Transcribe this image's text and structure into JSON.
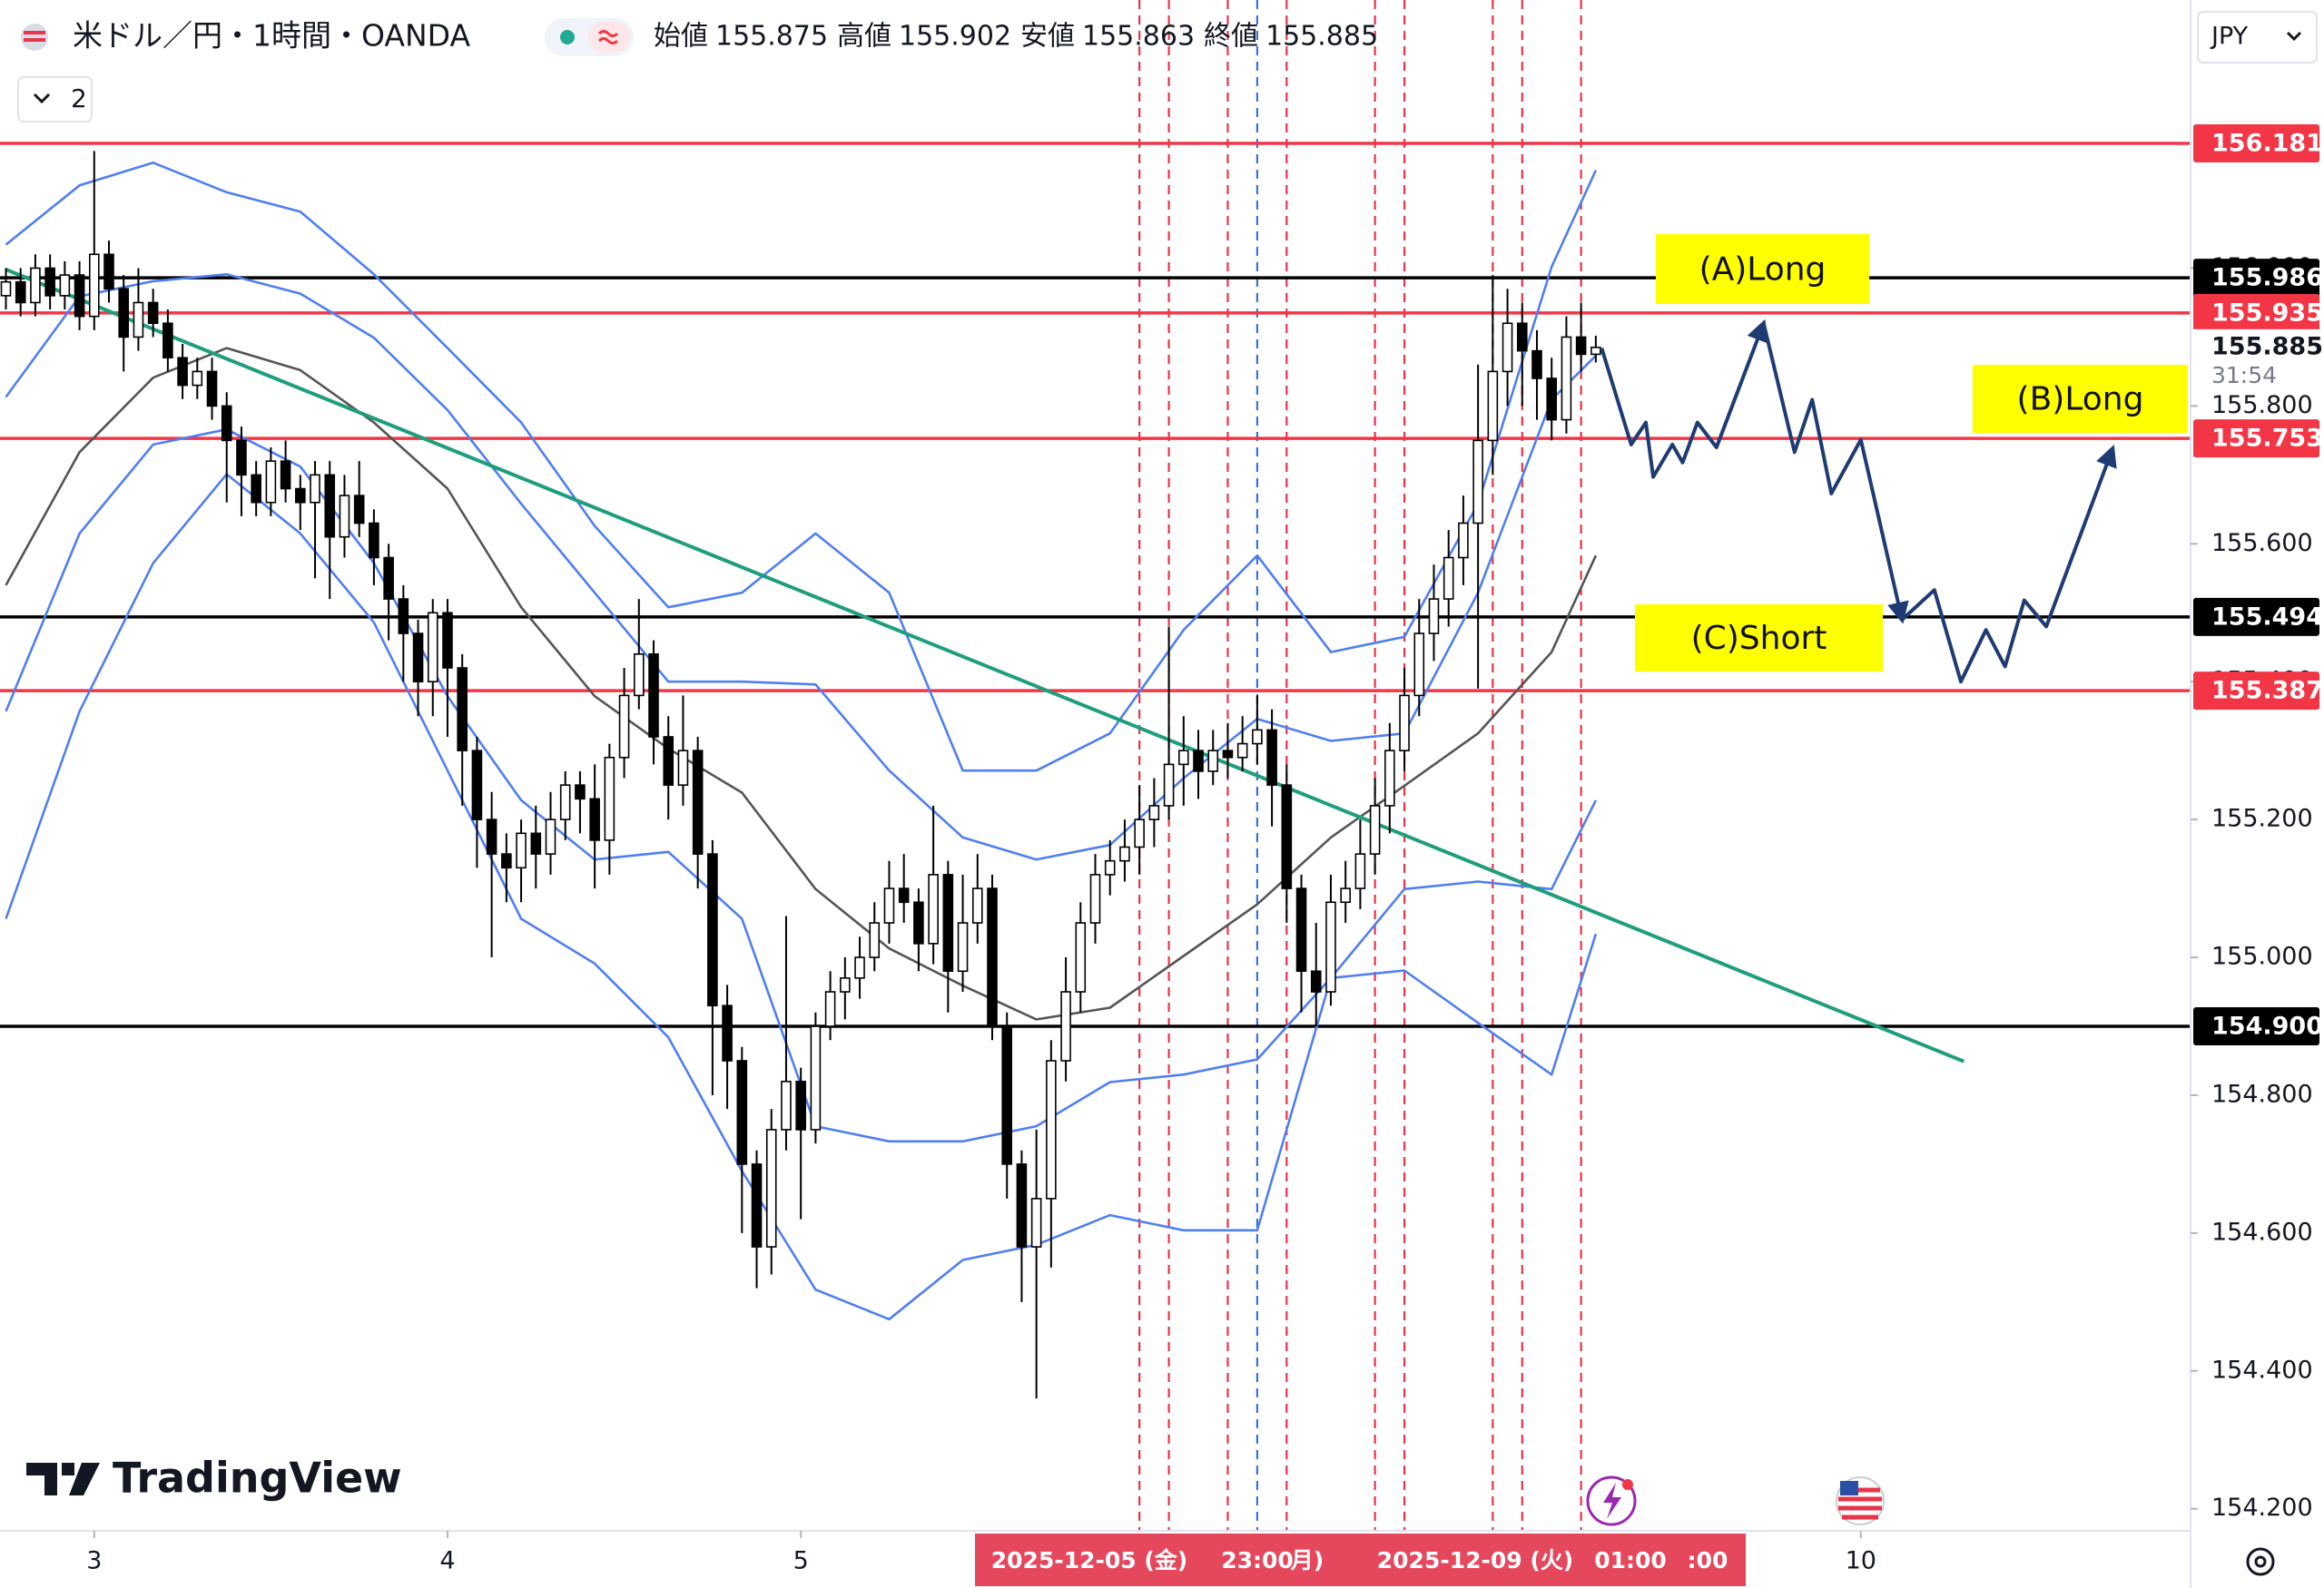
{
  "header": {
    "symbol": "米ドル／円・1時間・OANDA",
    "ohlc_labels": [
      "始値",
      "高値",
      "安値",
      "終値"
    ],
    "indicator_count": "2",
    "currency": "JPY",
    "brand": "TradingView"
  },
  "chart_data": {
    "type": "candlestick",
    "x": [
      0,
      1,
      2,
      3,
      4,
      5,
      6,
      7,
      8,
      9,
      10,
      11,
      12,
      13,
      14,
      15,
      16,
      17,
      18,
      19,
      20,
      21,
      22,
      23,
      24,
      25,
      26,
      27,
      28,
      29,
      30,
      31,
      32,
      33,
      34,
      35,
      36,
      37,
      38,
      39,
      40,
      41,
      42,
      43,
      44,
      45,
      46,
      47,
      48,
      49,
      50,
      51,
      52,
      53,
      54,
      55,
      56,
      57,
      58,
      59,
      60,
      61,
      62,
      63,
      64,
      65,
      66,
      67,
      68,
      69,
      70,
      71,
      72,
      73,
      74,
      75,
      76,
      77,
      78,
      79,
      80,
      81,
      82,
      83,
      84,
      85,
      86,
      87,
      88,
      89,
      90,
      91,
      92,
      93,
      94,
      95,
      96,
      97,
      98,
      99,
      100,
      101,
      102,
      103,
      104,
      105,
      106,
      107,
      108
    ],
    "open": [
      155.96,
      155.98,
      155.95,
      156.0,
      155.96,
      155.99,
      155.93,
      156.02,
      155.97,
      155.9,
      155.95,
      155.92,
      155.87,
      155.83,
      155.85,
      155.8,
      155.75,
      155.7,
      155.66,
      155.72,
      155.68,
      155.66,
      155.7,
      155.61,
      155.67,
      155.63,
      155.58,
      155.52,
      155.47,
      155.4,
      155.5,
      155.42,
      155.3,
      155.2,
      155.15,
      155.13,
      155.18,
      155.15,
      155.2,
      155.25,
      155.23,
      155.17,
      155.29,
      155.38,
      155.44,
      155.32,
      155.25,
      155.3,
      155.15,
      154.93,
      154.85,
      154.7,
      154.58,
      154.75,
      154.82,
      154.75,
      154.9,
      154.95,
      154.97,
      155.0,
      155.05,
      155.1,
      155.08,
      155.02,
      155.12,
      154.98,
      155.05,
      155.1,
      154.9,
      154.7,
      154.58,
      154.65,
      154.85,
      154.95,
      155.05,
      155.12,
      155.14,
      155.16,
      155.2,
      155.22,
      155.28,
      155.3,
      155.27,
      155.3,
      155.29,
      155.31,
      155.33,
      155.25,
      155.1,
      154.98,
      154.95,
      155.08,
      155.1,
      155.15,
      155.22,
      155.3,
      155.38,
      155.47,
      155.52,
      155.58,
      155.63,
      155.75,
      155.85,
      155.92,
      155.88,
      155.84,
      155.78,
      155.9,
      155.875
    ],
    "high": [
      156.0,
      156.0,
      156.02,
      156.02,
      156.01,
      156.01,
      156.17,
      156.04,
      155.99,
      156.0,
      155.97,
      155.94,
      155.89,
      155.87,
      155.87,
      155.82,
      155.77,
      155.72,
      155.74,
      155.75,
      155.7,
      155.72,
      155.72,
      155.7,
      155.72,
      155.65,
      155.6,
      155.54,
      155.49,
      155.52,
      155.52,
      155.44,
      155.32,
      155.24,
      155.18,
      155.2,
      155.22,
      155.24,
      155.27,
      155.27,
      155.28,
      155.31,
      155.42,
      155.52,
      155.46,
      155.35,
      155.38,
      155.32,
      155.17,
      154.96,
      154.87,
      154.72,
      154.78,
      155.06,
      154.84,
      154.92,
      154.98,
      155.0,
      155.03,
      155.08,
      155.14,
      155.15,
      155.1,
      155.22,
      155.14,
      155.12,
      155.15,
      155.12,
      154.92,
      154.72,
      154.75,
      154.88,
      155.0,
      155.08,
      155.15,
      155.17,
      155.2,
      155.25,
      155.26,
      155.48,
      155.35,
      155.33,
      155.33,
      155.34,
      155.35,
      155.38,
      155.36,
      155.28,
      155.12,
      155.05,
      155.12,
      155.14,
      155.2,
      155.26,
      155.34,
      155.42,
      155.52,
      155.57,
      155.62,
      155.67,
      155.86,
      155.99,
      155.97,
      155.95,
      155.91,
      155.87,
      155.93,
      155.95,
      155.902
    ],
    "low": [
      155.94,
      155.93,
      155.93,
      155.94,
      155.94,
      155.91,
      155.91,
      155.95,
      155.85,
      155.88,
      155.9,
      155.85,
      155.81,
      155.81,
      155.78,
      155.66,
      155.64,
      155.64,
      155.64,
      155.66,
      155.62,
      155.55,
      155.52,
      155.58,
      155.61,
      155.54,
      155.46,
      155.4,
      155.35,
      155.35,
      155.32,
      155.22,
      155.13,
      155.0,
      155.08,
      155.08,
      155.1,
      155.12,
      155.17,
      155.18,
      155.1,
      155.12,
      155.26,
      155.36,
      155.28,
      155.2,
      155.22,
      155.1,
      154.8,
      154.78,
      154.6,
      154.52,
      154.54,
      154.72,
      154.62,
      154.73,
      154.88,
      154.91,
      154.94,
      154.98,
      155.02,
      155.05,
      154.98,
      154.99,
      154.92,
      154.95,
      155.02,
      154.88,
      154.65,
      154.5,
      154.36,
      154.55,
      154.82,
      154.92,
      155.02,
      155.09,
      155.11,
      155.12,
      155.16,
      155.2,
      155.22,
      155.23,
      155.25,
      155.26,
      155.27,
      155.28,
      155.19,
      155.05,
      154.92,
      154.9,
      154.93,
      155.05,
      155.07,
      155.12,
      155.18,
      155.27,
      155.35,
      155.43,
      155.48,
      155.54,
      155.39,
      155.7,
      155.8,
      155.8,
      155.78,
      155.75,
      155.76,
      155.85,
      155.863
    ],
    "close": [
      155.98,
      155.95,
      156.0,
      155.96,
      155.99,
      155.93,
      156.02,
      155.97,
      155.9,
      155.95,
      155.92,
      155.87,
      155.83,
      155.85,
      155.8,
      155.75,
      155.7,
      155.66,
      155.72,
      155.68,
      155.66,
      155.7,
      155.61,
      155.67,
      155.63,
      155.58,
      155.52,
      155.47,
      155.4,
      155.5,
      155.42,
      155.3,
      155.2,
      155.15,
      155.13,
      155.18,
      155.15,
      155.2,
      155.25,
      155.23,
      155.17,
      155.29,
      155.38,
      155.44,
      155.32,
      155.25,
      155.3,
      155.15,
      154.93,
      154.85,
      154.7,
      154.58,
      154.75,
      154.82,
      154.75,
      154.9,
      154.95,
      154.97,
      155.0,
      155.05,
      155.1,
      155.08,
      155.02,
      155.12,
      154.98,
      155.05,
      155.1,
      154.9,
      154.7,
      154.58,
      154.65,
      154.85,
      154.95,
      155.05,
      155.12,
      155.14,
      155.16,
      155.2,
      155.22,
      155.28,
      155.3,
      155.27,
      155.3,
      155.29,
      155.31,
      155.33,
      155.25,
      155.1,
      154.98,
      154.95,
      155.08,
      155.1,
      155.15,
      155.22,
      155.3,
      155.38,
      155.47,
      155.52,
      155.58,
      155.63,
      155.75,
      155.85,
      155.92,
      155.88,
      155.84,
      155.78,
      155.9,
      155.875,
      155.885
    ],
    "up_color": "#ffffff",
    "down_color": "#000000",
    "xlim": [
      -0.4,
      148.4
    ],
    "xticks": [
      {
        "value": 6,
        "label": "3"
      },
      {
        "value": 30,
        "label": "4"
      },
      {
        "value": 54,
        "label": "5"
      },
      {
        "value": 126,
        "label": "10"
      }
    ],
    "ylim": [
      154.168,
      156.389
    ],
    "yticks": [
      {
        "value": 154.2,
        "label": "154.200"
      },
      {
        "value": 154.4,
        "label": "154.400"
      },
      {
        "value": 154.6,
        "label": "154.600"
      },
      {
        "value": 154.8,
        "label": "154.800"
      },
      {
        "value": 155,
        "label": "155.000"
      },
      {
        "value": 155.2,
        "label": "155.200"
      },
      {
        "value": 155.4,
        "label": "155.400"
      },
      {
        "value": 155.6,
        "label": "155.600"
      },
      {
        "value": 155.8,
        "label": "155.800"
      },
      {
        "value": 156,
        "label": "156.000"
      }
    ],
    "overlays": [
      {
        "color": "#555555",
        "x": [
          0,
          5,
          10,
          15,
          20,
          25,
          30,
          35,
          40,
          45,
          50,
          55,
          60,
          65,
          70,
          75,
          80,
          85,
          90,
          95,
          100,
          105,
          108
        ],
        "values": [
          155.54,
          155.733,
          155.841,
          155.884,
          155.852,
          155.776,
          155.68,
          155.508,
          155.379,
          155.303,
          155.239,
          155.099,
          155.013,
          154.959,
          154.91,
          154.927,
          155.002,
          155.077,
          155.174,
          155.249,
          155.325,
          155.443,
          155.583
        ]
      },
      {
        "color": "#4f7ff0",
        "x": [
          0,
          5,
          10,
          15,
          20,
          25,
          30,
          35,
          40,
          45,
          50,
          55,
          60,
          65,
          70,
          75,
          80,
          85,
          90,
          95,
          100,
          105,
          108
        ],
        "values": [
          156.034,
          156.12,
          156.153,
          156.11,
          156.082,
          155.991,
          155.884,
          155.776,
          155.626,
          155.508,
          155.529,
          155.615,
          155.529,
          155.271,
          155.271,
          155.325,
          155.475,
          155.583,
          155.443,
          155.465,
          155.658,
          156.002,
          156.142
        ]
      },
      {
        "color": "#4f7ff0",
        "x": [
          0,
          5,
          10,
          15,
          20,
          25,
          30,
          35,
          40,
          45,
          50,
          55,
          60,
          65,
          70,
          75,
          80,
          85,
          90,
          95,
          100,
          105,
          108
        ],
        "values": [
          155.813,
          155.959,
          155.981,
          155.991,
          155.963,
          155.899,
          155.794,
          155.658,
          155.529,
          155.4,
          155.4,
          155.396,
          155.271,
          155.174,
          155.142,
          155.163,
          155.26,
          155.346,
          155.314,
          155.325,
          155.529,
          155.809,
          155.873
        ]
      },
      {
        "color": "#4f7ff0",
        "x": [
          0,
          5,
          10,
          15,
          20,
          25,
          30,
          35,
          40,
          45,
          50,
          55,
          60,
          65,
          70,
          75,
          80,
          85,
          90,
          95,
          100,
          105,
          108
        ],
        "values": [
          155.357,
          155.615,
          155.744,
          155.766,
          155.712,
          155.572,
          155.379,
          155.228,
          155.142,
          155.153,
          155.056,
          154.755,
          154.733,
          154.733,
          154.755,
          154.819,
          154.83,
          154.852,
          154.97,
          155.099,
          155.11,
          155.099,
          155.228
        ]
      },
      {
        "color": "#4f7ff0",
        "x": [
          0,
          5,
          10,
          15,
          20,
          25,
          30,
          35,
          40,
          45,
          50,
          55,
          60,
          65,
          70,
          75,
          80,
          85,
          90,
          95,
          100,
          105,
          108
        ],
        "values": [
          155.056,
          155.357,
          155.572,
          155.701,
          155.615,
          155.486,
          155.271,
          155.056,
          154.991,
          154.884,
          154.69,
          154.518,
          154.475,
          154.561,
          154.583,
          154.626,
          154.604,
          154.604,
          154.97,
          154.981,
          154.905,
          154.83,
          155.034
        ]
      }
    ],
    "trendline": {
      "color": "#1f9e7e",
      "x": [
        0,
        133
      ],
      "values": [
        155.998,
        154.849
      ]
    },
    "hlines": [
      {
        "value": 156.181,
        "color": "#f23645"
      },
      {
        "value": 155.986,
        "color": "#000000"
      },
      {
        "value": 155.935,
        "color": "#f23645"
      },
      {
        "value": 155.753,
        "color": "#f23645"
      },
      {
        "value": 155.494,
        "color": "#000000"
      },
      {
        "value": 155.387,
        "color": "#f23645"
      },
      {
        "value": 154.9,
        "label": "154.900",
        "color": "#000000"
      }
    ],
    "vlines": [
      {
        "x": 77,
        "color": "#e8334a"
      },
      {
        "x": 79,
        "color": "#e8334a"
      },
      {
        "x": 83,
        "color": "#e8334a"
      },
      {
        "x": 85,
        "color": "#3b6fd9"
      },
      {
        "x": 87,
        "color": "#e8334a"
      },
      {
        "x": 93,
        "color": "#e8334a"
      },
      {
        "x": 95,
        "color": "#e8334a"
      },
      {
        "x": 101,
        "color": "#e8334a"
      },
      {
        "x": 103,
        "color": "#e8334a"
      },
      {
        "x": 107,
        "color": "#e8334a"
      }
    ],
    "projection": [
      {
        "color": "#1f3b73",
        "x": [
          108.4,
          110.4,
          111.4,
          111.9,
          113.2,
          113.9,
          114.9,
          116.2,
          119.4
        ],
        "values": [
          155.884,
          155.744,
          155.776,
          155.697,
          155.744,
          155.718,
          155.776,
          155.74,
          155.92
        ]
      },
      {
        "color": "#1f3b73",
        "x": [
          119.4,
          121.5,
          122.7,
          124.0,
          126.0,
          128.8
        ],
        "values": [
          155.92,
          155.733,
          155.809,
          155.673,
          155.751,
          155.49
        ]
      },
      {
        "color": "#1f3b73",
        "x": [
          128.8,
          131.0,
          132.8,
          134.5,
          135.8,
          137.1,
          138.6,
          143.1
        ],
        "values": [
          155.49,
          155.533,
          155.4,
          155.475,
          155.422,
          155.518,
          155.48,
          155.738
        ]
      }
    ],
    "annotations": [
      {
        "text": "(A)Long",
        "color": "#ffff00"
      },
      {
        "text": "(B)Long",
        "color": "#ffff00"
      },
      {
        "text": "(C)Short",
        "color": "#ffff00"
      }
    ],
    "countdown": "31:54",
    "time_labels": [
      "2025-12-05 (金)",
      "23:00",
      "月)",
      "2025-12-09 (火)",
      "01:00",
      ":00"
    ]
  }
}
